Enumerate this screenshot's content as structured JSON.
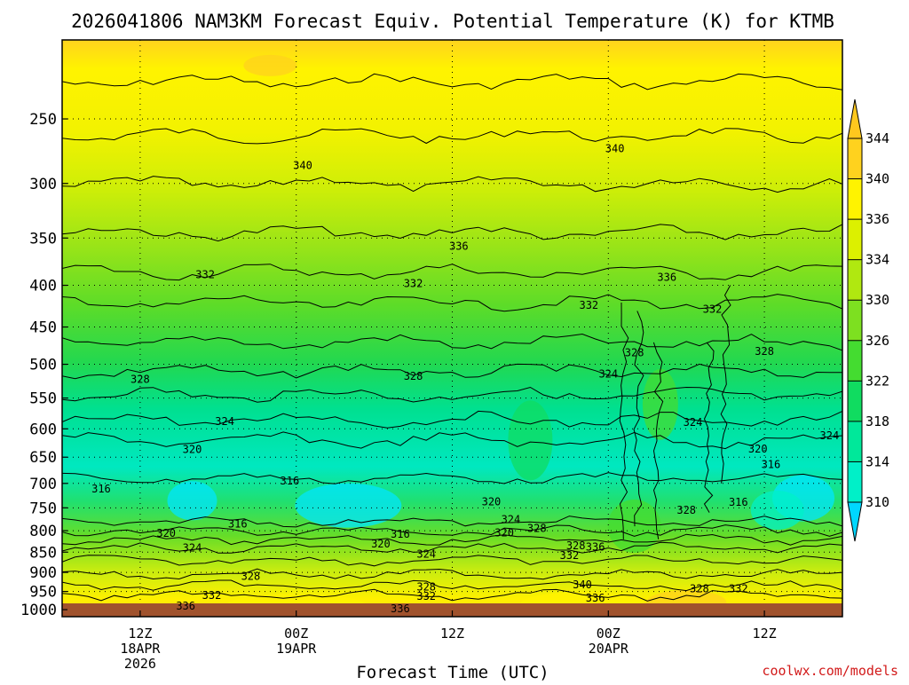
{
  "chart_data": {
    "type": "heatmap",
    "title": "2026041806 NAM3KM Forecast Equiv. Potential Temperature (K) for KTMB",
    "xlabel": "Forecast Time (UTC)",
    "ylabel": "",
    "x_ticks": [
      {
        "lines": [
          "12Z",
          "18APR",
          "2026"
        ],
        "hours": 6
      },
      {
        "lines": [
          "00Z",
          "19APR"
        ],
        "hours": 18
      },
      {
        "lines": [
          "12Z"
        ],
        "hours": 30
      },
      {
        "lines": [
          "00Z",
          "20APR"
        ],
        "hours": 42
      },
      {
        "lines": [
          "12Z"
        ],
        "hours": 54
      }
    ],
    "x_range_hours": [
      0,
      60
    ],
    "y_ticks": [
      250,
      300,
      350,
      400,
      450,
      500,
      550,
      600,
      650,
      700,
      750,
      800,
      850,
      900,
      950,
      1000
    ],
    "y_range_hpa": [
      200,
      1020
    ],
    "y_scale": "log",
    "colorbar": {
      "levels": [
        310,
        314,
        318,
        322,
        326,
        330,
        334,
        336,
        340,
        344
      ],
      "colors": [
        "#00e5ff",
        "#00f0c8",
        "#00e89a",
        "#10dc60",
        "#44dc30",
        "#7de020",
        "#b0e810",
        "#dcf000",
        "#fff300",
        "#ffd21e"
      ],
      "under_color": "#00d7ff",
      "over_color": "#ffc81e"
    },
    "ground_color": "#a0522d",
    "contour_labels": [
      {
        "text": "340",
        "hours": 18.5,
        "hpa": 285
      },
      {
        "text": "340",
        "hours": 42.5,
        "hpa": 272
      },
      {
        "text": "336",
        "hours": 30.5,
        "hpa": 358
      },
      {
        "text": "336",
        "hours": 46.5,
        "hpa": 391
      },
      {
        "text": "332",
        "hours": 11,
        "hpa": 388
      },
      {
        "text": "332",
        "hours": 27,
        "hpa": 398
      },
      {
        "text": "332",
        "hours": 40.5,
        "hpa": 423
      },
      {
        "text": "332",
        "hours": 50,
        "hpa": 428
      },
      {
        "text": "328",
        "hours": 6,
        "hpa": 522
      },
      {
        "text": "328",
        "hours": 27,
        "hpa": 517
      },
      {
        "text": "328",
        "hours": 44,
        "hpa": 484
      },
      {
        "text": "328",
        "hours": 54,
        "hpa": 482
      },
      {
        "text": "324",
        "hours": 12.5,
        "hpa": 588
      },
      {
        "text": "324",
        "hours": 42,
        "hpa": 514
      },
      {
        "text": "324",
        "hours": 48.5,
        "hpa": 589
      },
      {
        "text": "324",
        "hours": 59,
        "hpa": 612
      },
      {
        "text": "320",
        "hours": 10,
        "hpa": 636
      },
      {
        "text": "320",
        "hours": 53.5,
        "hpa": 635
      },
      {
        "text": "316",
        "hours": 3,
        "hpa": 711
      },
      {
        "text": "316",
        "hours": 17.5,
        "hpa": 695
      },
      {
        "text": "316",
        "hours": 54.5,
        "hpa": 664
      },
      {
        "text": "316",
        "hours": 52,
        "hpa": 738
      },
      {
        "text": "328",
        "hours": 48,
        "hpa": 755
      },
      {
        "text": "320",
        "hours": 33,
        "hpa": 737
      },
      {
        "text": "324",
        "hours": 34.5,
        "hpa": 775
      },
      {
        "text": "320",
        "hours": 34,
        "hpa": 805
      },
      {
        "text": "328",
        "hours": 36.5,
        "hpa": 795
      },
      {
        "text": "316",
        "hours": 13.5,
        "hpa": 785
      },
      {
        "text": "316",
        "hours": 26,
        "hpa": 808
      },
      {
        "text": "320",
        "hours": 8,
        "hpa": 806
      },
      {
        "text": "320",
        "hours": 24.5,
        "hpa": 830
      },
      {
        "text": "324",
        "hours": 10,
        "hpa": 840
      },
      {
        "text": "324",
        "hours": 28,
        "hpa": 855
      },
      {
        "text": "328",
        "hours": 39.5,
        "hpa": 835
      },
      {
        "text": "332",
        "hours": 39,
        "hpa": 858
      },
      {
        "text": "336",
        "hours": 41,
        "hpa": 838
      },
      {
        "text": "328",
        "hours": 14.5,
        "hpa": 910
      },
      {
        "text": "332",
        "hours": 11.5,
        "hpa": 960
      },
      {
        "text": "328",
        "hours": 28,
        "hpa": 938
      },
      {
        "text": "332",
        "hours": 28,
        "hpa": 963
      },
      {
        "text": "336",
        "hours": 9.5,
        "hpa": 990
      },
      {
        "text": "336",
        "hours": 26,
        "hpa": 997
      },
      {
        "text": "340",
        "hours": 40,
        "hpa": 932
      },
      {
        "text": "336",
        "hours": 41,
        "hpa": 968
      },
      {
        "text": "328",
        "hours": 49,
        "hpa": 942
      },
      {
        "text": "332",
        "hours": 52,
        "hpa": 942
      }
    ]
  },
  "credit": "coolwx.com/models"
}
